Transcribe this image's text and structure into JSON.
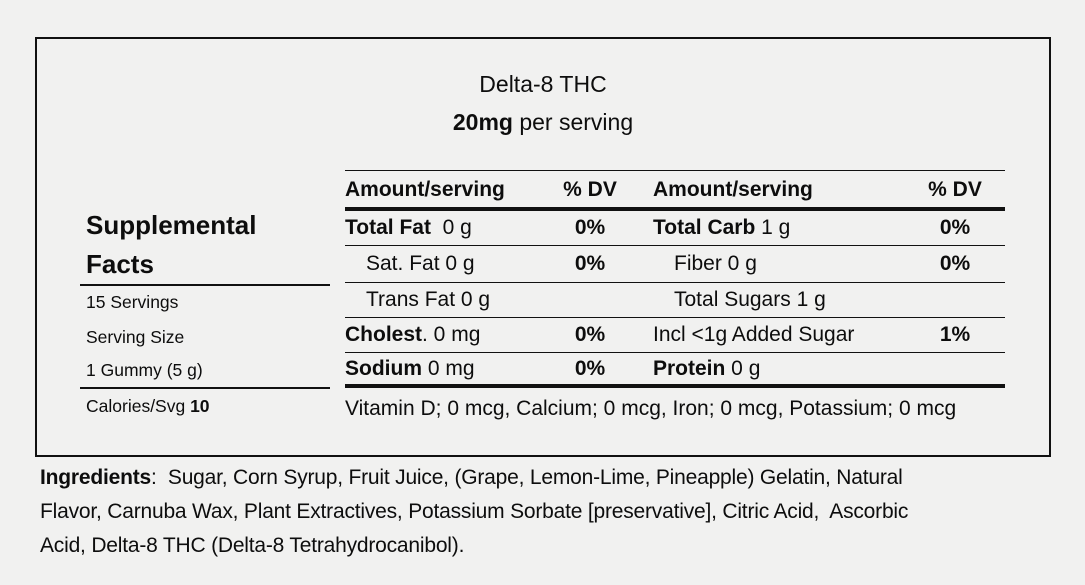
{
  "panel": {
    "title": "Delta-8 THC",
    "dose": "20mg",
    "dose_suffix": " per serving"
  },
  "facts": {
    "heading": "Supplemental Facts",
    "servings": "15 Servings",
    "serving_size_label": "Serving Size",
    "serving_size_value": "1 Gummy (5 g)",
    "calories_label": "Calories/Svg ",
    "calories_value": "10"
  },
  "table": {
    "header": {
      "amount1": "Amount/serving",
      "dv1": "% DV",
      "amount2": "Amount/serving",
      "dv2": "% DV"
    },
    "rows": [
      {
        "l_bold": "Total Fat",
        "l_rest": "  0 g",
        "dv1": "0%",
        "r_bold": "Total Carb",
        "r_rest": " 1 g",
        "dv2": "0%"
      },
      {
        "l_bold": "",
        "l_rest": "Sat. Fat 0 g",
        "dv1": "0%",
        "r_bold": "",
        "r_rest": "Fiber 0 g",
        "dv2": "0%"
      },
      {
        "l_bold": "",
        "l_rest": "Trans Fat 0 g",
        "dv1": "",
        "r_bold": "",
        "r_rest": "Total Sugars 1 g",
        "dv2": ""
      },
      {
        "l_bold": "Cholest",
        "l_rest": ". 0 mg",
        "dv1": "0%",
        "r_bold": "",
        "r_rest": "Incl <1g Added Sugar",
        "dv2": "1%"
      },
      {
        "l_bold": "Sodium",
        "l_rest": " 0 mg",
        "dv1": "0%",
        "r_bold": "Protein",
        "r_rest": " 0 g",
        "dv2": ""
      }
    ],
    "micronutrients": "Vitamin D; 0 mcg, Calcium; 0 mcg, Iron; 0 mcg, Potassium; 0 mcg"
  },
  "ingredients": {
    "label": "Ingredients",
    "line1": ":  Sugar, Corn Syrup, Fruit Juice, (Grape, Lemon-Lime, Pineapple) Gelatin, Natural",
    "line2": "Flavor, Carnuba Wax, Plant Extractives, Potassium Sorbate [preservative], Citric Acid,  Ascorbic",
    "line3": "Acid, Delta-8 THC (Delta-8 Tetrahydrocanibol)."
  },
  "colors": {
    "background": "#f1f1f0",
    "text": "#0d0d0d",
    "rule": "#111111"
  }
}
